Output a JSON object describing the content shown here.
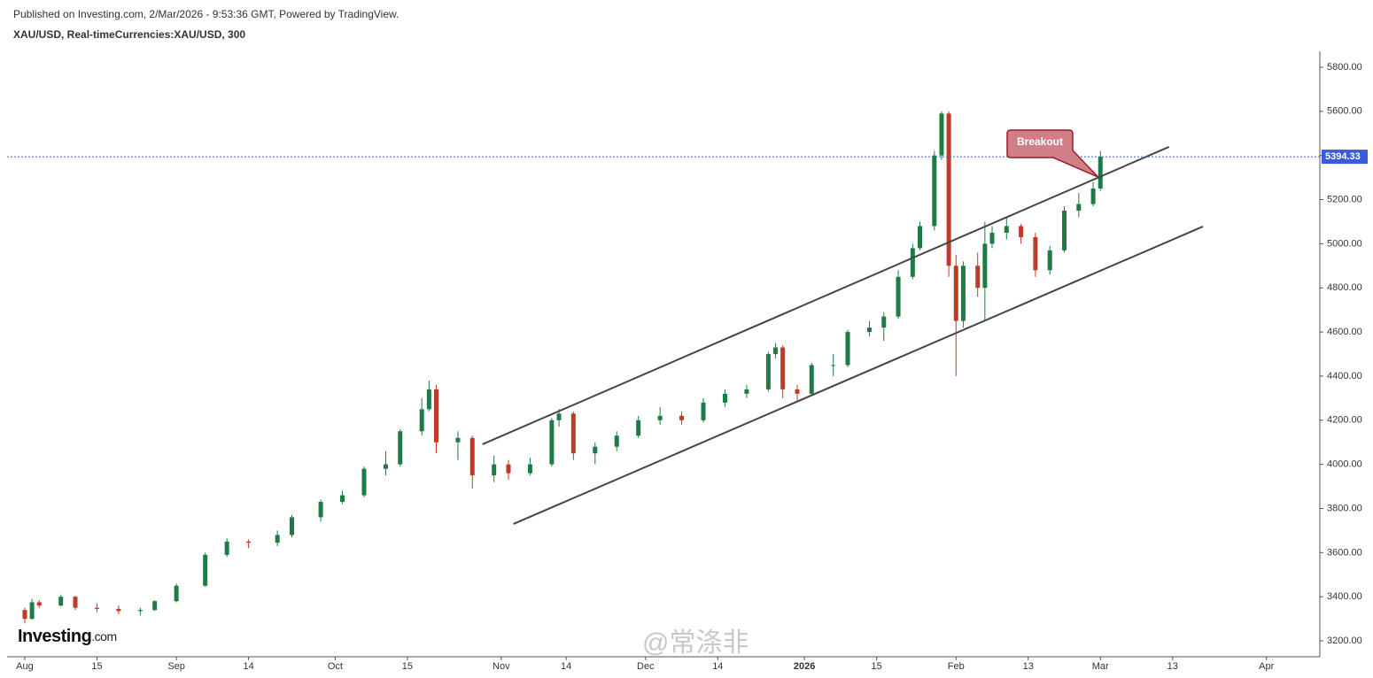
{
  "chart_data": {
    "type": "candlestick",
    "header": "Published on Investing.com, 2/Mar/2026 - 9:53:36 GMT, Powered by TradingView.",
    "title": "XAU/USD, Real-timeCurrencies:XAU/USD, 300",
    "logo_main": "Investing",
    "logo_suffix": ".com",
    "watermark": "@常涤非",
    "up_color": "#1e7b45",
    "down_color": "#c0392b",
    "x": [
      0,
      1,
      2,
      5,
      7,
      10,
      13,
      16,
      18,
      21,
      25,
      28,
      31,
      35,
      37,
      41,
      44,
      47,
      50,
      52,
      55,
      56,
      57,
      60,
      62,
      65,
      67,
      70,
      73,
      74,
      76,
      79,
      82,
      85,
      88,
      91,
      94,
      97,
      100,
      103,
      104,
      105,
      107,
      109,
      112,
      114,
      117,
      119,
      121,
      123,
      124,
      126,
      127,
      128,
      129,
      130,
      132,
      133,
      134,
      136,
      138,
      140,
      142,
      144,
      146,
      148,
      149
    ],
    "open": [
      3340,
      3300,
      3375,
      3360,
      3400,
      3350,
      3345,
      3335,
      3340,
      3380,
      3450,
      3590,
      3650,
      3645,
      3680,
      3760,
      3830,
      3860,
      3980,
      4000,
      4150,
      4250,
      4340,
      4100,
      4120,
      3950,
      4000,
      3960,
      4000,
      4200,
      4230,
      4050,
      4080,
      4130,
      4200,
      4220,
      4200,
      4280,
      4320,
      4340,
      4500,
      4530,
      4340,
      4320,
      4450,
      4450,
      4600,
      4620,
      4670,
      4850,
      4980,
      5080,
      5400,
      5590,
      4900,
      4650,
      4900,
      4800,
      5000,
      5050,
      5080,
      5030,
      4880,
      4970,
      5150,
      5180,
      5250
    ],
    "high": [
      3350,
      3390,
      3385,
      3410,
      3405,
      3370,
      3360,
      3350,
      3385,
      3460,
      3600,
      3665,
      3660,
      3700,
      3770,
      3840,
      3880,
      3990,
      4060,
      4160,
      4300,
      4380,
      4360,
      4150,
      4130,
      4040,
      4020,
      4030,
      4210,
      4250,
      4240,
      4100,
      4150,
      4220,
      4260,
      4240,
      4300,
      4340,
      4360,
      4510,
      4550,
      4540,
      4360,
      4460,
      4500,
      4610,
      4650,
      4690,
      4880,
      5000,
      5100,
      5420,
      5600,
      5600,
      4950,
      4920,
      4960,
      5100,
      5080,
      5120,
      5090,
      5050,
      4990,
      5170,
      5230,
      5280,
      5420
    ],
    "low": [
      3280,
      3295,
      3350,
      3355,
      3340,
      3330,
      3320,
      3315,
      3335,
      3375,
      3445,
      3580,
      3620,
      3630,
      3670,
      3740,
      3820,
      3850,
      3950,
      3990,
      4130,
      4240,
      4050,
      4020,
      3890,
      3920,
      3930,
      3950,
      3990,
      4170,
      4020,
      4000,
      4060,
      4120,
      4180,
      4180,
      4190,
      4260,
      4300,
      4330,
      4480,
      4300,
      4290,
      4310,
      4400,
      4440,
      4580,
      4560,
      4660,
      4840,
      4970,
      5060,
      5380,
      4850,
      4400,
      4620,
      4760,
      4650,
      4980,
      5020,
      5000,
      4850,
      4860,
      4960,
      5120,
      5170,
      5240
    ],
    "close": [
      3300,
      3375,
      3360,
      3400,
      3350,
      3345,
      3335,
      3340,
      3380,
      3450,
      3590,
      3650,
      3645,
      3680,
      3760,
      3830,
      3860,
      3980,
      4000,
      4150,
      4250,
      4340,
      4100,
      4120,
      3950,
      4000,
      3960,
      4000,
      4200,
      4230,
      4050,
      4080,
      4130,
      4200,
      4220,
      4200,
      4280,
      4320,
      4340,
      4500,
      4530,
      4340,
      4320,
      4450,
      4450,
      4600,
      4620,
      4670,
      4850,
      4980,
      5080,
      5400,
      5590,
      4900,
      4650,
      4900,
      4800,
      5000,
      5050,
      5080,
      5030,
      4880,
      4970,
      5150,
      5180,
      5250,
      5394.33
    ],
    "last_price": 5394.33,
    "last_price_color": "#3b5bdb",
    "trend_lines": [
      {
        "x": [
          63.4,
          158.5
        ],
        "y": [
          4091,
          5439
        ]
      },
      {
        "x": [
          67.7,
          163.2
        ],
        "y": [
          3730,
          5078
        ]
      }
    ],
    "annotation": {
      "text": "Breakout",
      "x": 148.7,
      "y": 5302
    },
    "xlim": [
      -2.45,
      179.4
    ],
    "ylim": [
      3128,
      5872
    ],
    "xticks": [
      {
        "value": 0,
        "label": "Aug"
      },
      {
        "value": 10,
        "label": "15"
      },
      {
        "value": 21,
        "label": "Sep"
      },
      {
        "value": 31,
        "label": "14"
      },
      {
        "value": 43,
        "label": "Oct"
      },
      {
        "value": 53,
        "label": "15"
      },
      {
        "value": 66,
        "label": "Nov"
      },
      {
        "value": 75,
        "label": "14"
      },
      {
        "value": 86,
        "label": "Dec"
      },
      {
        "value": 96,
        "label": "14"
      },
      {
        "value": 108,
        "label": "2026"
      },
      {
        "value": 118,
        "label": "15"
      },
      {
        "value": 129,
        "label": "Feb"
      },
      {
        "value": 139,
        "label": "13"
      },
      {
        "value": 149,
        "label": "Mar"
      },
      {
        "value": 159,
        "label": "13"
      },
      {
        "value": 172,
        "label": "Apr"
      }
    ],
    "yticks": [
      {
        "value": 3200,
        "label": "3200.00"
      },
      {
        "value": 3400,
        "label": "3400.00"
      },
      {
        "value": 3600,
        "label": "3600.00"
      },
      {
        "value": 3800,
        "label": "3800.00"
      },
      {
        "value": 4000,
        "label": "4000.00"
      },
      {
        "value": 4200,
        "label": "4200.00"
      },
      {
        "value": 4400,
        "label": "4400.00"
      },
      {
        "value": 4600,
        "label": "4600.00"
      },
      {
        "value": 4800,
        "label": "4800.00"
      },
      {
        "value": 5000,
        "label": "5000.00"
      },
      {
        "value": 5200,
        "label": "5200.00"
      },
      {
        "value": 5400,
        "label": "5400.00"
      },
      {
        "value": 5600,
        "label": "5600.00"
      },
      {
        "value": 5800,
        "label": "5800.00"
      }
    ]
  }
}
